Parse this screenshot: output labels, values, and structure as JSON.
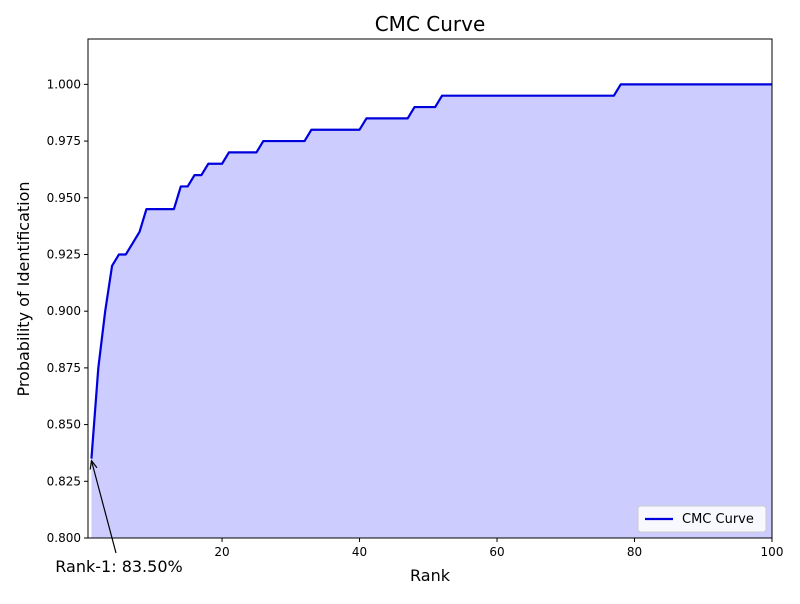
{
  "chart_data": {
    "type": "area",
    "title": "CMC Curve",
    "xlabel": "Rank",
    "ylabel": "Probability of Identification",
    "xlim": [
      0.5,
      100
    ],
    "ylim": [
      0.8,
      1.02
    ],
    "x_ticks": [
      20,
      40,
      60,
      80,
      100
    ],
    "x_tick_labels": [
      "20",
      "40",
      "60",
      "80",
      "100"
    ],
    "y_ticks": [
      0.8,
      0.825,
      0.85,
      0.875,
      0.9,
      0.925,
      0.95,
      0.975,
      1.0
    ],
    "y_tick_labels": [
      "0.800",
      "0.825",
      "0.850",
      "0.875",
      "0.900",
      "0.925",
      "0.950",
      "0.975",
      "1.000"
    ],
    "grid": false,
    "legend": {
      "position": "bottom-right",
      "entries": [
        "CMC Curve"
      ]
    },
    "series": [
      {
        "name": "CMC Curve",
        "x": [
          1,
          2,
          3,
          4,
          5,
          6,
          7,
          8,
          9,
          10,
          11,
          12,
          13,
          14,
          15,
          16,
          17,
          18,
          19,
          20,
          21,
          22,
          23,
          24,
          25,
          26,
          27,
          28,
          29,
          30,
          31,
          32,
          33,
          34,
          35,
          36,
          37,
          38,
          39,
          40,
          41,
          42,
          43,
          44,
          45,
          46,
          47,
          48,
          49,
          50,
          51,
          52,
          53,
          54,
          55,
          56,
          57,
          58,
          59,
          60,
          61,
          62,
          63,
          64,
          65,
          66,
          67,
          68,
          69,
          70,
          71,
          72,
          73,
          74,
          75,
          76,
          77,
          78,
          79,
          80,
          81,
          82,
          83,
          84,
          85,
          86,
          87,
          88,
          89,
          90,
          91,
          92,
          93,
          94,
          95,
          96,
          97,
          98,
          99,
          100
        ],
        "y": [
          0.835,
          0.875,
          0.9,
          0.92,
          0.925,
          0.925,
          0.93,
          0.935,
          0.945,
          0.945,
          0.945,
          0.945,
          0.945,
          0.955,
          0.955,
          0.96,
          0.96,
          0.965,
          0.965,
          0.965,
          0.97,
          0.97,
          0.97,
          0.97,
          0.97,
          0.975,
          0.975,
          0.975,
          0.975,
          0.975,
          0.975,
          0.975,
          0.98,
          0.98,
          0.98,
          0.98,
          0.98,
          0.98,
          0.98,
          0.98,
          0.985,
          0.985,
          0.985,
          0.985,
          0.985,
          0.985,
          0.985,
          0.99,
          0.99,
          0.99,
          0.99,
          0.995,
          0.995,
          0.995,
          0.995,
          0.995,
          0.995,
          0.995,
          0.995,
          0.995,
          0.995,
          0.995,
          0.995,
          0.995,
          0.995,
          0.995,
          0.995,
          0.995,
          0.995,
          0.995,
          0.995,
          0.995,
          0.995,
          0.995,
          0.995,
          0.995,
          0.995,
          1.0,
          1.0,
          1.0,
          1.0,
          1.0,
          1.0,
          1.0,
          1.0,
          1.0,
          1.0,
          1.0,
          1.0,
          1.0,
          1.0,
          1.0,
          1.0,
          1.0,
          1.0,
          1.0,
          1.0,
          1.0,
          1.0,
          1.0
        ],
        "line_color": "#0000dd",
        "fill_color": "#ccccff"
      }
    ],
    "annotations": [
      {
        "text": "Rank-1: 83.50%",
        "x": 1,
        "y": 0.835
      }
    ]
  }
}
